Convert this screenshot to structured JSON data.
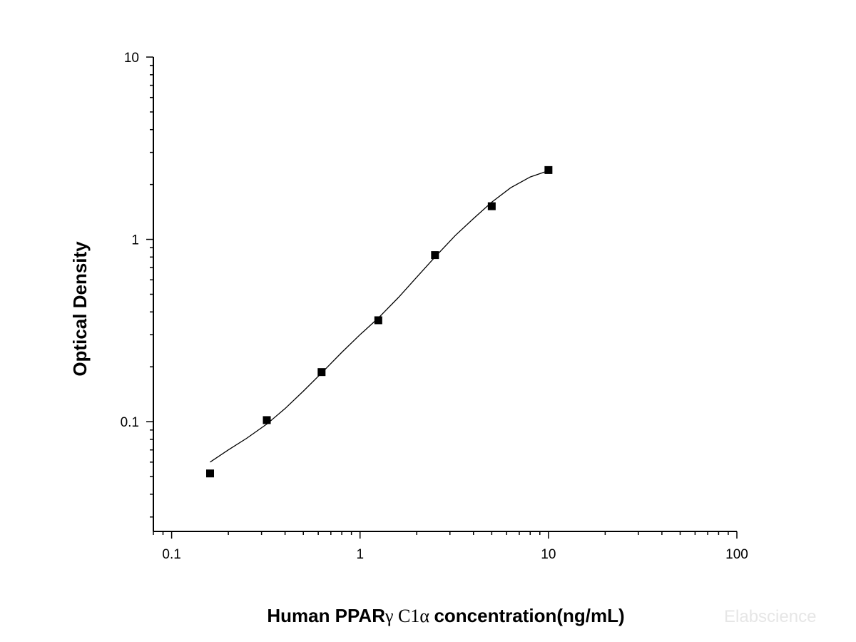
{
  "watermark": "Elabscience",
  "chart_data": {
    "type": "scatter",
    "title": "",
    "xlabel_parts": [
      "Human PPAR",
      "γ C1α ",
      " concentration(ng/mL)"
    ],
    "ylabel": "Optical Density",
    "x_scale": "log",
    "y_scale": "log",
    "xlim": [
      0.08,
      100
    ],
    "ylim": [
      0.025,
      10
    ],
    "x_ticks": [
      0.1,
      1,
      10,
      100
    ],
    "x_tick_labels": [
      "0.1",
      "1",
      "10",
      "100"
    ],
    "y_ticks": [
      0.1,
      1,
      10
    ],
    "y_tick_labels": [
      "0.1",
      "1",
      "10"
    ],
    "grid": false,
    "legend": "none",
    "series": [
      {
        "marker": "square",
        "color": "#000000",
        "x": [
          0.16,
          0.32,
          0.625,
          1.25,
          2.5,
          5,
          10
        ],
        "y": [
          0.052,
          0.102,
          0.187,
          0.36,
          0.82,
          1.52,
          2.4
        ]
      }
    ],
    "fit_curve": {
      "style": "solid",
      "color": "#000000",
      "x": [
        0.16,
        0.2,
        0.25,
        0.32,
        0.4,
        0.5,
        0.625,
        0.8,
        1.0,
        1.25,
        1.6,
        2.0,
        2.5,
        3.2,
        4.0,
        5.0,
        6.3,
        8.0,
        10.0
      ],
      "y": [
        0.06,
        0.07,
        0.081,
        0.097,
        0.118,
        0.147,
        0.185,
        0.24,
        0.3,
        0.37,
        0.48,
        0.62,
        0.8,
        1.05,
        1.3,
        1.6,
        1.92,
        2.2,
        2.38
      ]
    }
  }
}
